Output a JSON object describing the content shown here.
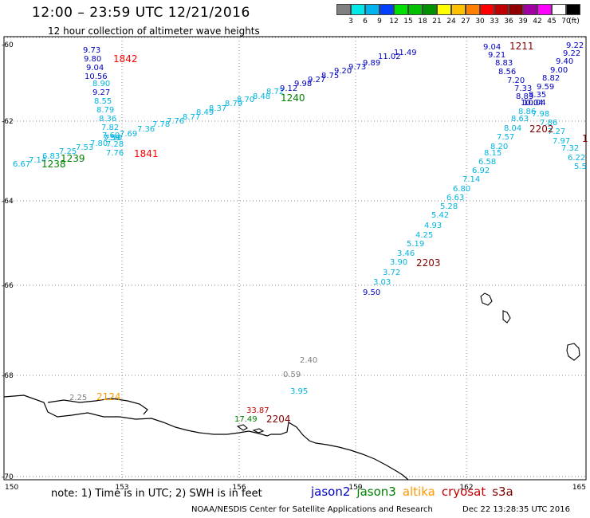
{
  "header": {
    "title": "12:00 – 23:59 UTC 12/21/2016",
    "subtitle": "12 hour collection of altimeter wave heights"
  },
  "legend": {
    "unit": "(ft)",
    "bins": [
      {
        "label": "3",
        "color": "#808080"
      },
      {
        "label": "6",
        "color": "#00e8e8"
      },
      {
        "label": "9",
        "color": "#00b4f0"
      },
      {
        "label": "12",
        "color": "#0040ff"
      },
      {
        "label": "15",
        "color": "#00e000"
      },
      {
        "label": "18",
        "color": "#00c000"
      },
      {
        "label": "21",
        "color": "#009000"
      },
      {
        "label": "24",
        "color": "#ffff00"
      },
      {
        "label": "27",
        "color": "#ffc000"
      },
      {
        "label": "30",
        "color": "#ff8000"
      },
      {
        "label": "33",
        "color": "#ff0000"
      },
      {
        "label": "36",
        "color": "#c00000"
      },
      {
        "label": "39",
        "color": "#900000"
      },
      {
        "label": "42",
        "color": "#a000a0"
      },
      {
        "label": "45",
        "color": "#ff00ff"
      },
      {
        "label": "70",
        "color": "#ffffff"
      },
      {
        "label": "",
        "color": "#000000"
      }
    ]
  },
  "axes": {
    "lat_labels": [
      "-60",
      "-62",
      "-64",
      "-66",
      "-68",
      "-70"
    ],
    "lon_labels": [
      "150",
      "153",
      "156",
      "159",
      "162",
      "165"
    ]
  },
  "colors": {
    "jason2": "#0000c0",
    "jason3": "#008000",
    "altika": "#ff9900",
    "cryosat": "#c00000",
    "s3a": "#800000",
    "cyan": "#00b4e0",
    "grey": "#808080"
  },
  "tracks": {
    "t1842": {
      "time": "1842",
      "values": [
        "9.73",
        "9.80",
        "9.04",
        "10.56",
        "8.90",
        "9.27",
        "8.55",
        "8.79",
        "8.36",
        "7.82",
        "7.60",
        "7.50",
        "7.28",
        "7.76"
      ],
      "t1841": "1841"
    },
    "t1240": {
      "time": "1240",
      "time2": "1239",
      "time3": "1238",
      "values": [
        "6.67",
        "7.14",
        "6.83",
        "7.25",
        "7.53",
        "7.80",
        "7.59",
        "7.69",
        "7.36",
        "7.78",
        "7.76",
        "8.77",
        "8.49",
        "8.37",
        "8.79",
        "8.70",
        "8.48",
        "8.72",
        "9.12",
        "9.98",
        "9.27",
        "8.75",
        "9.20",
        "9.73",
        "9.89",
        "11.02",
        "11.49"
      ]
    },
    "t1211": {
      "time": "1211",
      "values": [
        "9.04",
        "9.21",
        "8.83",
        "8.56",
        "7.20",
        "7.33",
        "8.83",
        "10.04",
        "8.86",
        "8.63",
        "8.04",
        "7.57",
        "8.20",
        "8.15",
        "6.58",
        "6.92",
        "7.14",
        "6.80",
        "6.63",
        "5.28",
        "5.42",
        "4.93",
        "4.25",
        "5.19",
        "3.46",
        "3.90",
        "3.72",
        "3.03",
        "9.50"
      ]
    },
    "t1227": {
      "values": [
        "9.22",
        "9.22",
        "9.40",
        "9.00",
        "8.82",
        "9.59",
        "8.35",
        "10.04",
        "7.98",
        "7.86",
        "7.27",
        "7.97",
        "7.32",
        "6.22",
        "5.5"
      ],
      "time2202": "2202",
      "time2203": "2203",
      "partial": "1"
    },
    "misc": {
      "v240": "2.40",
      "v059": "0.59",
      "v395": "3.95",
      "v3387": "33.87",
      "v1749": "17.49",
      "t2204": "2204",
      "v225": "2.25",
      "t2124": "2124"
    }
  },
  "footer": {
    "note": "note:  1) Time is in UTC;  2) SWH is in feet",
    "missions": [
      "jason2",
      "jason3",
      "altika",
      "cryosat",
      "s3a"
    ],
    "credit": "NOAA/NESDIS Center for Satellite Applications and Research",
    "date": "Dec 22 13:28:35 UTC 2016"
  }
}
